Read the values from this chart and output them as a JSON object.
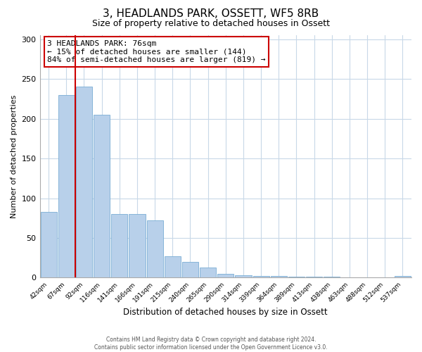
{
  "title": "3, HEADLANDS PARK, OSSETT, WF5 8RB",
  "subtitle": "Size of property relative to detached houses in Ossett",
  "xlabel": "Distribution of detached houses by size in Ossett",
  "ylabel": "Number of detached properties",
  "bar_labels": [
    "42sqm",
    "67sqm",
    "92sqm",
    "116sqm",
    "141sqm",
    "166sqm",
    "191sqm",
    "215sqm",
    "240sqm",
    "265sqm",
    "290sqm",
    "314sqm",
    "339sqm",
    "364sqm",
    "389sqm",
    "413sqm",
    "438sqm",
    "463sqm",
    "488sqm",
    "512sqm",
    "537sqm"
  ],
  "bar_values": [
    83,
    230,
    240,
    205,
    80,
    80,
    72,
    27,
    20,
    13,
    5,
    3,
    2,
    2,
    1,
    1,
    1,
    0,
    0,
    0,
    2
  ],
  "bar_color": "#b8d0ea",
  "bar_edge_color": "#7aadd4",
  "vline_x": 1.5,
  "vline_color": "#cc0000",
  "annotation_text": "3 HEADLANDS PARK: 76sqm\n← 15% of detached houses are smaller (144)\n84% of semi-detached houses are larger (819) →",
  "annotation_box_edgecolor": "#cc0000",
  "annotation_box_facecolor": "#ffffff",
  "ylim": [
    0,
    305
  ],
  "yticks": [
    0,
    50,
    100,
    150,
    200,
    250,
    300
  ],
  "footer_line1": "Contains HM Land Registry data © Crown copyright and database right 2024.",
  "footer_line2": "Contains public sector information licensed under the Open Government Licence v3.0.",
  "background_color": "#ffffff",
  "grid_color": "#c8d8e8",
  "title_fontsize": 11,
  "subtitle_fontsize": 9
}
